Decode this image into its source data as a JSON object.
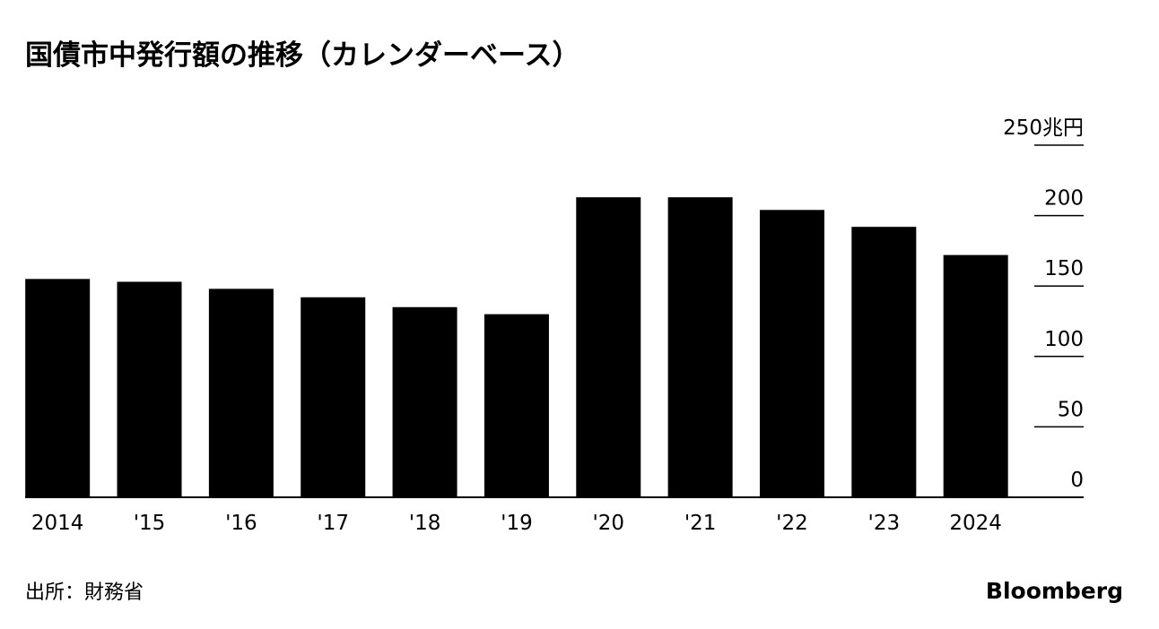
{
  "chart_data": {
    "type": "bar",
    "title": "国債市中発行額の推移（カレンダーベース）",
    "categories": [
      "2014",
      "'15",
      "'16",
      "'17",
      "'18",
      "'19",
      "'20",
      "'21",
      "'22",
      "'23",
      "2024"
    ],
    "values": [
      155,
      153,
      148,
      142,
      135,
      130,
      213,
      213,
      204,
      192,
      172
    ],
    "color": "#000000",
    "ylim": [
      0,
      250
    ],
    "yticks": [
      0,
      50,
      100,
      150,
      200,
      {
        "value": 250,
        "label": "250兆円"
      }
    ],
    "source": "出所：財務省",
    "brand": "Bloomberg"
  }
}
